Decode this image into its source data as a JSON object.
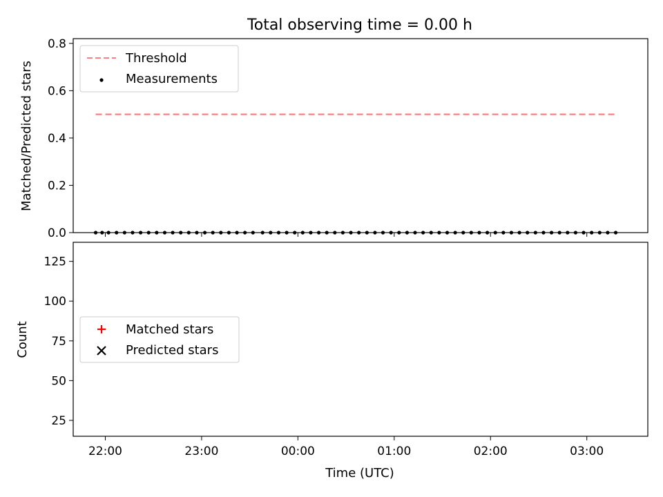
{
  "chart_data": [
    {
      "type": "scatter",
      "title": "Total observing time = 0.00 h",
      "ylabel": "Matched/Predicted stars",
      "xlim": [
        "21:40",
        "03:38"
      ],
      "ylim": [
        0,
        0.82
      ],
      "yticks": [
        "0.0",
        "0.2",
        "0.4",
        "0.6",
        "0.8"
      ],
      "legend_position": "top-left",
      "series": [
        {
          "name": "Threshold",
          "style": "dashed-line",
          "color": "#ff7f7f",
          "x": [
            "21:54",
            "03:18"
          ],
          "y": [
            0.5,
            0.5
          ]
        },
        {
          "name": "Measurements",
          "style": "dot",
          "color": "#000000",
          "x": [
            "21:54",
            "21:58",
            "22:02",
            "22:07",
            "22:12",
            "22:17",
            "22:22",
            "22:27",
            "22:32",
            "22:37",
            "22:42",
            "22:47",
            "22:52",
            "22:57",
            "23:02",
            "23:07",
            "23:12",
            "23:17",
            "23:22",
            "23:27",
            "23:32",
            "23:38",
            "23:43",
            "23:48",
            "23:53",
            "23:58",
            "00:03",
            "00:08",
            "00:13",
            "00:18",
            "00:23",
            "00:28",
            "00:33",
            "00:38",
            "00:43",
            "00:48",
            "00:53",
            "00:58",
            "01:03",
            "01:08",
            "01:13",
            "01:18",
            "01:23",
            "01:28",
            "01:33",
            "01:38",
            "01:43",
            "01:48",
            "01:53",
            "01:58",
            "02:03",
            "02:08",
            "02:13",
            "02:18",
            "02:23",
            "02:28",
            "02:33",
            "02:38",
            "02:43",
            "02:48",
            "02:53",
            "02:58",
            "03:03",
            "03:08",
            "03:13",
            "03:18"
          ],
          "y": [
            0.0,
            0.0,
            0.0,
            0.0,
            0.0,
            0.0,
            0.0,
            0.0,
            0.0,
            0.0,
            0.0,
            0.0,
            0.0,
            0.0,
            0.0,
            0.0,
            0.0,
            0.0,
            0.0,
            0.0,
            0.0,
            0.0,
            0.0,
            0.0,
            0.0,
            0.0,
            0.0,
            0.0,
            0.0,
            0.0,
            0.0,
            0.0,
            0.0,
            0.0,
            0.0,
            0.0,
            0.0,
            0.0,
            0.0,
            0.0,
            0.0,
            0.0,
            0.0,
            0.0,
            0.0,
            0.0,
            0.0,
            0.0,
            0.0,
            0.0,
            0.0,
            0.0,
            0.0,
            0.0,
            0.0,
            0.0,
            0.0,
            0.0,
            0.0,
            0.0,
            0.0,
            0.0,
            0.0,
            0.0,
            0.0,
            0.0
          ]
        }
      ]
    },
    {
      "type": "scatter",
      "xlabel": "Time (UTC)",
      "ylabel": "Count",
      "xticks": [
        "22:00",
        "23:00",
        "00:00",
        "01:00",
        "02:00",
        "03:00"
      ],
      "xlim": [
        "21:40",
        "03:38"
      ],
      "ylim": [
        15,
        137
      ],
      "yticks": [
        "25",
        "50",
        "75",
        "100",
        "125"
      ],
      "legend_position": "center-left",
      "series": [
        {
          "name": "Matched stars",
          "style": "plus",
          "color": "#ff0000",
          "x": [],
          "y": []
        },
        {
          "name": "Predicted stars",
          "style": "x",
          "color": "#000000",
          "x": [],
          "y": []
        }
      ]
    }
  ]
}
